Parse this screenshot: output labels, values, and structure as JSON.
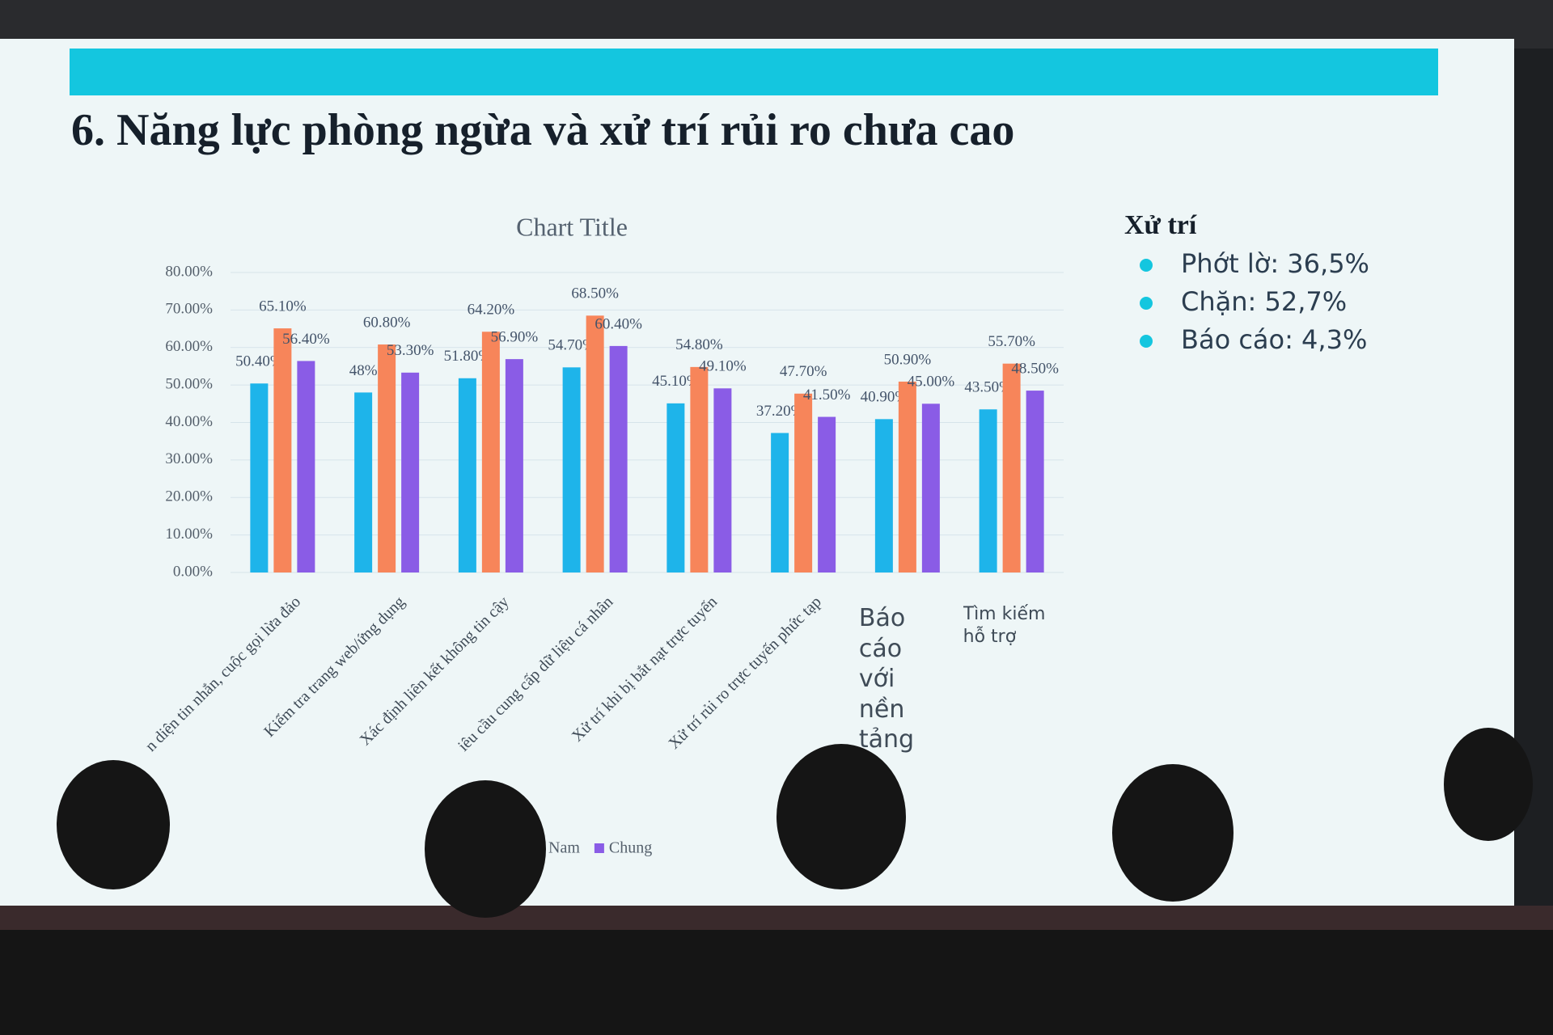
{
  "slide": {
    "title": "6. Năng lực phòng ngừa và xử trí rủi ro chưa cao",
    "panel": {
      "heading": "Xử trí",
      "items": [
        "Phớt lờ: 36,5%",
        "Chặn: 52,7%",
        "Báo cáo: 4,3%"
      ]
    }
  },
  "chart_data": {
    "type": "bar",
    "title": "Chart Title",
    "categories": [
      "n diện tin nhắn, cuộc gọi lừa đảo",
      "Kiểm tra trang web/ứng dụng",
      "Xác định liên kết không tin cậy",
      "iêu cầu cung cấp dữ liệu cá nhân",
      "Xử trí khi bị bắt nạt trực tuyến",
      "Xử trí rủi ro trực tuyến phức tạp",
      "Báo cáo với nền tảng",
      "Tìm kiếm hỗ trợ"
    ],
    "series": [
      {
        "color": "#1eb4ea",
        "values": [
          50.4,
          48,
          51.8,
          54.7,
          45.1,
          37.2,
          40.9,
          43.5
        ],
        "value_labels": [
          "50.40%",
          "48%",
          "51.80%",
          "54.70%",
          "45.10%",
          "37.20%",
          "40.90%",
          "43.50%"
        ]
      },
      {
        "name": "Nam",
        "color": "#f7855a",
        "values": [
          65.1,
          60.8,
          64.2,
          68.5,
          54.8,
          47.7,
          50.9,
          55.7
        ],
        "value_labels": [
          "65.10%",
          "60.80%",
          "64.20%",
          "68.50%",
          "54.80%",
          "47.70%",
          "50.90%",
          "55.70%"
        ]
      },
      {
        "name": "Chung",
        "color": "#8a5ce6",
        "values": [
          56.4,
          53.3,
          56.9,
          60.4,
          49.1,
          41.5,
          45.0,
          48.5
        ],
        "value_labels": [
          "56.40%",
          "53.30%",
          "56.90%",
          "60.40%",
          "49.10%",
          "41.50%",
          "45.00%",
          "48.50%"
        ]
      }
    ],
    "ylim": [
      0,
      80
    ],
    "yticks": [
      {
        "value": 0,
        "label": "0.00%"
      },
      {
        "value": 10,
        "label": "10.00%"
      },
      {
        "value": 20,
        "label": "20.00%"
      },
      {
        "value": 30,
        "label": "30.00%"
      },
      {
        "value": 40,
        "label": "40.00%"
      },
      {
        "value": 50,
        "label": "50.00%"
      },
      {
        "value": 60,
        "label": "60.00%"
      },
      {
        "value": 70,
        "label": "70.00%"
      },
      {
        "value": 80,
        "label": "80.00%"
      }
    ],
    "grid": true
  }
}
